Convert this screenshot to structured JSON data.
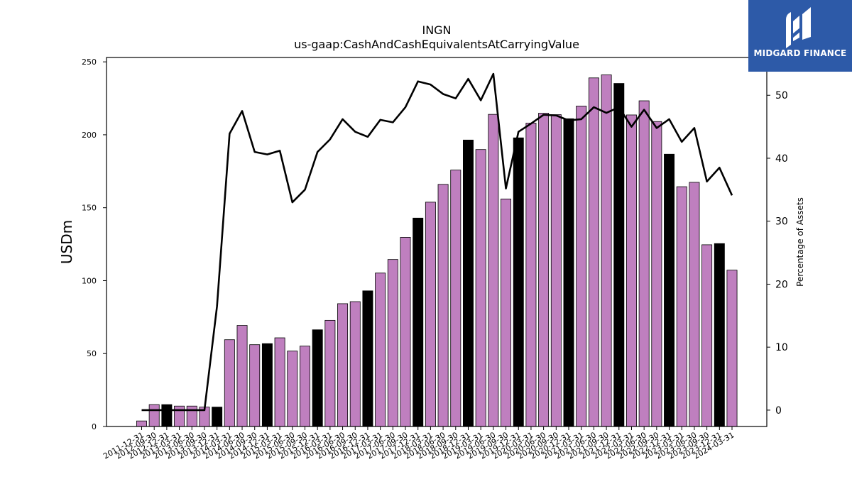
{
  "chart_data": {
    "type": "bar",
    "title": "INGN",
    "subtitle": "us-gaap:CashAndCashEquivalentsAtCarryingValue",
    "ylabel": "USDm",
    "y2label": "Percentage of Assets",
    "ylim": [
      0,
      253
    ],
    "y2lim": [
      -2.6,
      56
    ],
    "yticks": [
      0,
      50,
      100,
      150,
      200,
      250
    ],
    "y2ticks": [
      0,
      10,
      20,
      30,
      40,
      50
    ],
    "grid": false,
    "colors": {
      "bar": "#bf7fbf",
      "highlight": "#000000",
      "line": "#000000"
    },
    "categories": [
      "2011-12-31",
      "2012-09-30",
      "2012-12-31",
      "2013-03-31",
      "2013-06-30",
      "2013-09-30",
      "2013-12-31",
      "2014-03-31",
      "2014-06-30",
      "2014-09-30",
      "2014-12-31",
      "2015-03-31",
      "2015-06-30",
      "2015-09-30",
      "2015-12-31",
      "2016-03-31",
      "2016-06-30",
      "2016-09-30",
      "2016-12-31",
      "2017-03-31",
      "2017-06-30",
      "2017-09-30",
      "2017-12-31",
      "2018-03-31",
      "2018-06-30",
      "2018-09-30",
      "2018-12-31",
      "2019-03-31",
      "2019-06-30",
      "2019-09-30",
      "2019-12-31",
      "2020-03-31",
      "2020-06-30",
      "2020-09-30",
      "2020-12-31",
      "2021-03-31",
      "2021-06-30",
      "2021-09-30",
      "2021-12-31",
      "2022-03-31",
      "2022-06-30",
      "2022-09-30",
      "2022-12-31",
      "2023-03-31",
      "2023-06-30",
      "2023-09-30",
      "2023-12-31",
      "2024-03-31"
    ],
    "series": [
      {
        "kind": "bar",
        "values": [
          3.8,
          15,
          15,
          14,
          14,
          13.3,
          13.3,
          59.5,
          69.3,
          56.1,
          56.8,
          60.8,
          51.7,
          55.1,
          66.3,
          72.8,
          84.2,
          85.6,
          93,
          105.2,
          114.5,
          129.7,
          142.9,
          153.8,
          166,
          175.8,
          196.4,
          189.9,
          214,
          156,
          197.9,
          208,
          214.8,
          213.8,
          211,
          219.7,
          239,
          241.1,
          235.2,
          213.6,
          223.3,
          209.1,
          186.7,
          164.4,
          167.4,
          124.6,
          125.4,
          107.2
        ],
        "highlight": [
          false,
          false,
          true,
          false,
          false,
          false,
          true,
          false,
          false,
          false,
          true,
          false,
          false,
          false,
          true,
          false,
          false,
          false,
          true,
          false,
          false,
          false,
          true,
          false,
          false,
          false,
          true,
          false,
          false,
          false,
          true,
          false,
          false,
          false,
          true,
          false,
          false,
          false,
          true,
          false,
          false,
          false,
          true,
          false,
          false,
          false,
          true,
          false
        ]
      },
      {
        "kind": "line",
        "values": [
          0,
          0,
          0,
          0,
          0,
          0,
          16.5,
          43.9,
          47.5,
          41,
          40.6,
          41.2,
          33,
          35,
          41,
          43,
          46.2,
          44.2,
          43.4,
          46.1,
          45.7,
          48.1,
          52.2,
          51.7,
          50.2,
          49.5,
          52.6,
          49.2,
          53.4,
          35.2,
          44.2,
          45.5,
          46.9,
          46.8,
          46.0,
          46.2,
          48.1,
          47.2,
          48.1,
          45.0,
          47.7,
          44.8,
          46.2,
          42.6,
          44.8,
          36.3,
          38.5,
          34.1
        ]
      }
    ]
  },
  "logo": {
    "text": "MIDGARD FINANCE",
    "icon": "midgard-logo-icon"
  }
}
